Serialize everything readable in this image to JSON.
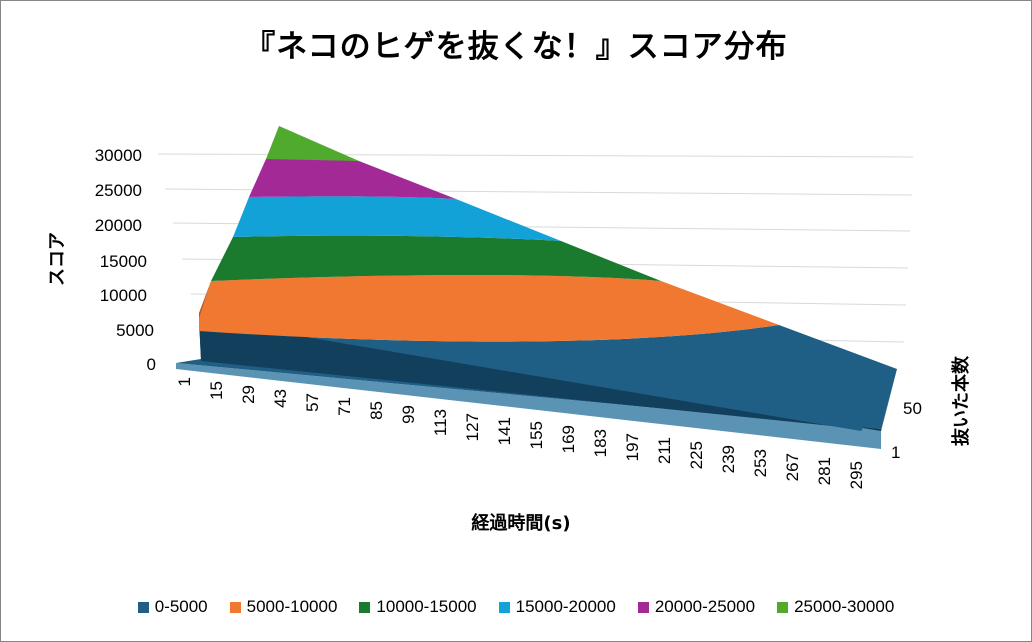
{
  "chart_data": {
    "type": "surface",
    "title": "『ネコのヒゲを抜くな！』スコア分布",
    "ylabel": "スコア",
    "xlabel": "経過時間(s)",
    "zlabel": "抜いた本数",
    "zlim": [
      0,
      30000
    ],
    "z_ticks": [
      "30000",
      "25000",
      "20000",
      "15000",
      "10000",
      "5000",
      "0"
    ],
    "x_ticks": [
      "1",
      "15",
      "29",
      "43",
      "57",
      "71",
      "85",
      "99",
      "113",
      "127",
      "141",
      "155",
      "169",
      "183",
      "197",
      "211",
      "225",
      "239",
      "253",
      "267",
      "281",
      "295"
    ],
    "depth_ticks": [
      "50",
      "1"
    ],
    "bands": [
      {
        "name": "0-5000",
        "color": "#1F5F85"
      },
      {
        "name": "5000-10000",
        "color": "#F07830"
      },
      {
        "name": "10000-15000",
        "color": "#1A7A2E"
      },
      {
        "name": "15000-20000",
        "color": "#12A2D8"
      },
      {
        "name": "20000-25000",
        "color": "#A32997"
      },
      {
        "name": "25000-30000",
        "color": "#4FAA2E"
      }
    ]
  }
}
